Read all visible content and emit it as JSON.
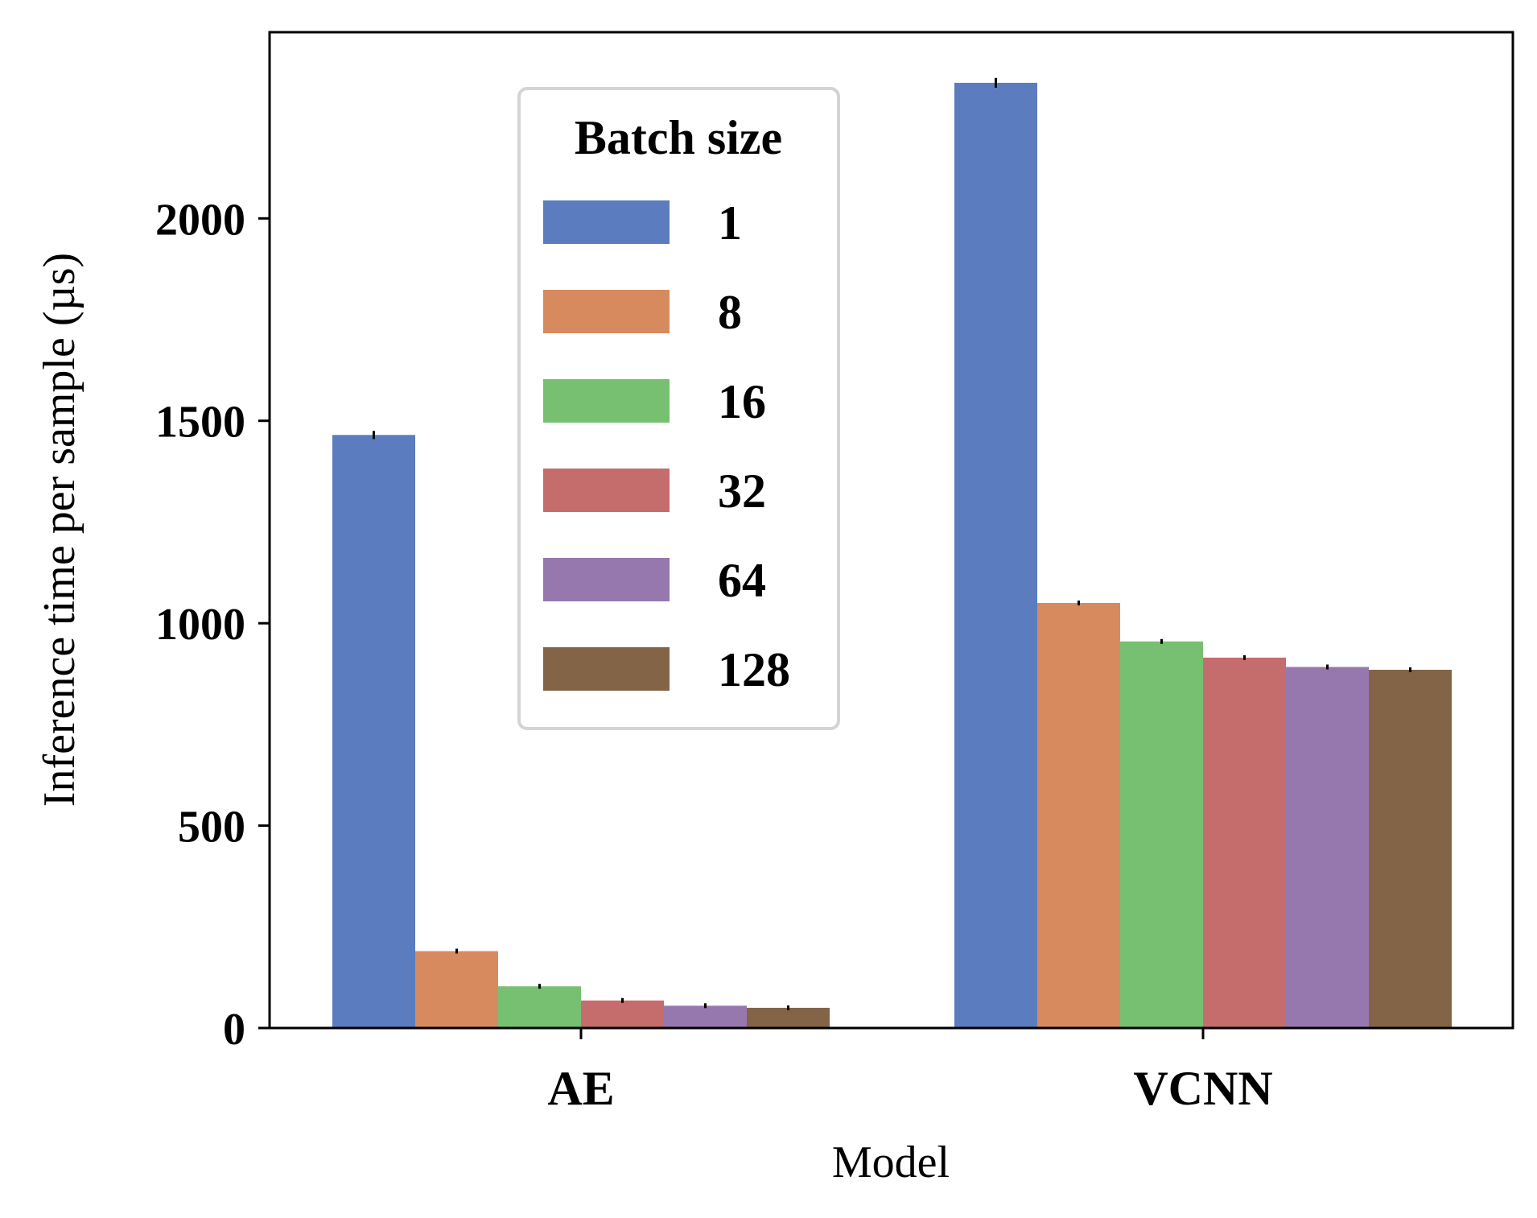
{
  "chart_data": {
    "type": "bar",
    "title": "",
    "xlabel": "Model",
    "ylabel": "Inference time per sample (µs)",
    "categories": [
      "AE",
      "VCNN"
    ],
    "ylim": [
      0,
      2460
    ],
    "yticks": [
      0,
      500,
      1000,
      1500,
      2000
    ],
    "grid": false,
    "legend": {
      "title": "Batch size",
      "placement": "upper-center-left"
    },
    "series": [
      {
        "name": "1",
        "color": "#5b7dbf",
        "values": [
          1465,
          2335
        ],
        "errors": [
          10,
          12
        ]
      },
      {
        "name": "8",
        "color": "#d88a5f",
        "values": [
          190,
          1050
        ],
        "errors": [
          5,
          5
        ]
      },
      {
        "name": "16",
        "color": "#77c071",
        "values": [
          103,
          955
        ],
        "errors": [
          0,
          5
        ]
      },
      {
        "name": "32",
        "color": "#c56d6c",
        "values": [
          68,
          915
        ],
        "errors": [
          0,
          5
        ]
      },
      {
        "name": "64",
        "color": "#9677ae",
        "values": [
          55,
          892
        ],
        "errors": [
          0,
          0
        ]
      },
      {
        "name": "128",
        "color": "#836447",
        "values": [
          50,
          885
        ],
        "errors": [
          0,
          0
        ]
      }
    ]
  }
}
